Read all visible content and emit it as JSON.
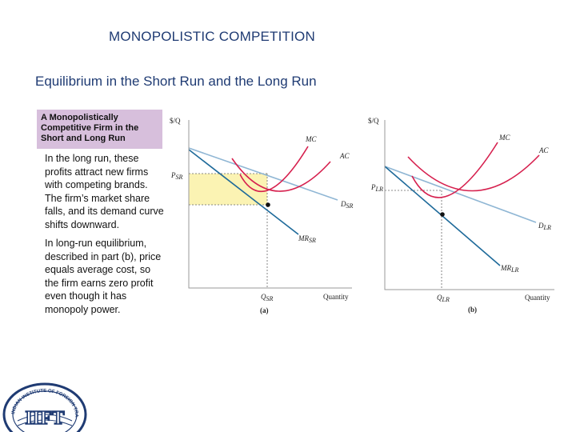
{
  "slide": {
    "title": "MONOPOLISTIC COMPETITION",
    "subtitle": "Equilibrium in the Short Run and the Long Run",
    "caption": "A Monopolistically Competitive Firm in the Short and Long Run",
    "paragraph1": "In the long run, these profits attract new firms with competing brands. The firm’s market share falls, and its demand curve shifts downward.",
    "paragraph2": "In long-run equilibrium, described in part (b), price equals average cost, so the firm earns zero profit even though it has monopoly power."
  },
  "diagram_a": {
    "y_axis": "$/Q",
    "x_axis": "Quantity",
    "price_label": "P",
    "price_sub": "SR",
    "qty_label": "Q",
    "qty_sub": "SR",
    "mc_label": "MC",
    "ac_label": "AC",
    "demand_label": "D",
    "demand_sub": "SR",
    "mr_label": "MR",
    "mr_sub": "SR",
    "part_label": "(a)"
  },
  "diagram_b": {
    "y_axis": "$/Q",
    "x_axis": "Quantity",
    "price_label": "P",
    "price_sub": "LR",
    "qty_label": "Q",
    "qty_sub": "LR",
    "mc_label": "MC",
    "ac_label": "AC",
    "demand_label": "D",
    "demand_sub": "LR",
    "mr_label": "MR",
    "mr_sub": "LR",
    "part_label": "(b)"
  },
  "colors": {
    "mc_curve": "#d6204e",
    "demand_curve": "#8fb6d4",
    "mr_curve": "#1e6a9a",
    "profit_area": "#fbf3b3",
    "title_text": "#1f3b73",
    "caption_bg": "#d7bfdc"
  },
  "logo": {
    "text": "IIFT",
    "ring_text": "INDIAN INSTITUTE OF FOREIGN TRADE"
  }
}
